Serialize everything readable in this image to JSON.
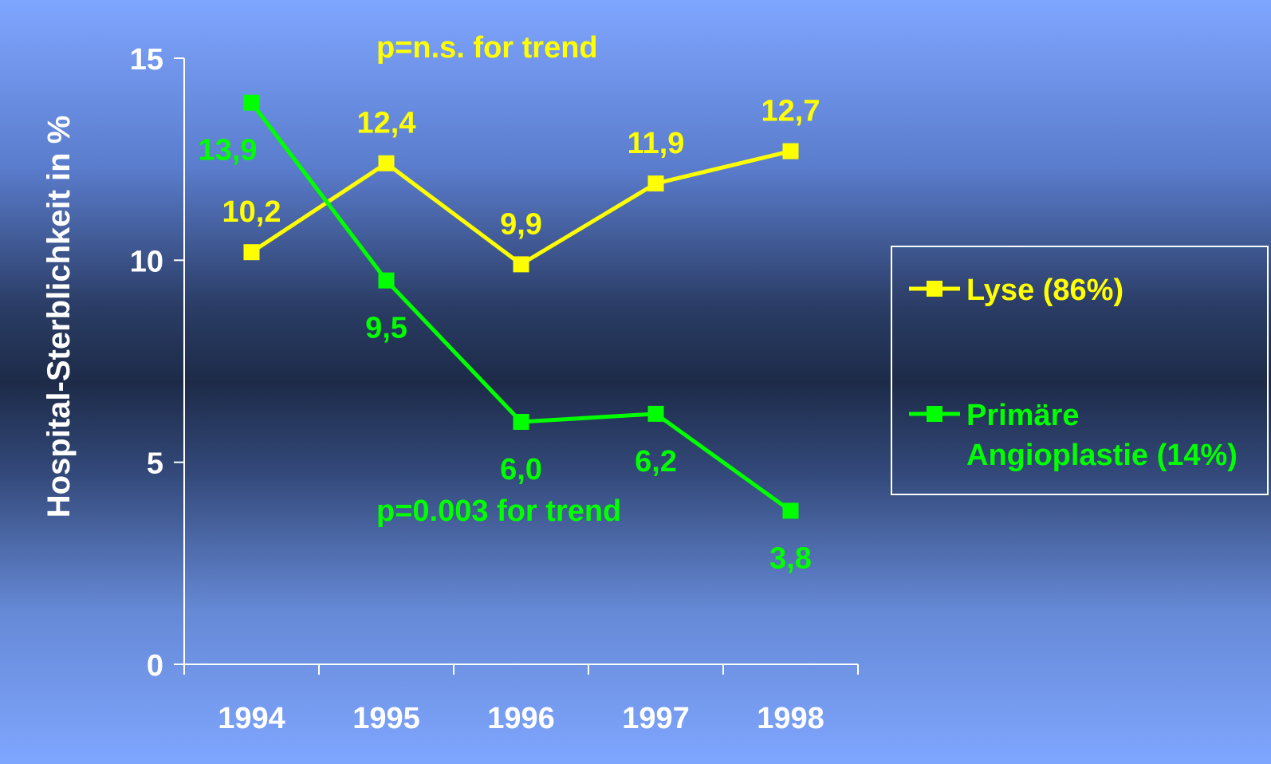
{
  "chart_data": {
    "type": "line",
    "categories": [
      "1994",
      "1995",
      "1996",
      "1997",
      "1998"
    ],
    "ylabel": "Hospital-Sterblichkeit  in %",
    "xlabel": "",
    "ylim": [
      0,
      15
    ],
    "yticks": [
      0,
      5,
      10,
      15
    ],
    "grid": false,
    "legend_position": "right",
    "series": [
      {
        "name": "Lyse (86%)",
        "color": "#ffff00",
        "values": [
          10.2,
          12.4,
          9.9,
          11.9,
          12.7
        ],
        "labels": [
          "10,2",
          "12,4",
          "9,9",
          "11,9",
          "12,7"
        ]
      },
      {
        "name": "Primäre Angioplastie (14%)",
        "name_lines": [
          "Primäre",
          "Angioplastie (14%)"
        ],
        "color": "#00ff00",
        "values": [
          13.9,
          9.5,
          6.0,
          6.2,
          3.8
        ],
        "labels": [
          "13,9",
          "9,5",
          "6,0",
          "6,2",
          "3,8"
        ]
      }
    ],
    "annotations": [
      {
        "text": "p=n.s.  for trend",
        "color": "#ffff00",
        "series": "Lyse (86%)"
      },
      {
        "text": "p=0.003  for trend",
        "color": "#00ff00",
        "series": "Primäre Angioplastie (14%)"
      }
    ]
  }
}
